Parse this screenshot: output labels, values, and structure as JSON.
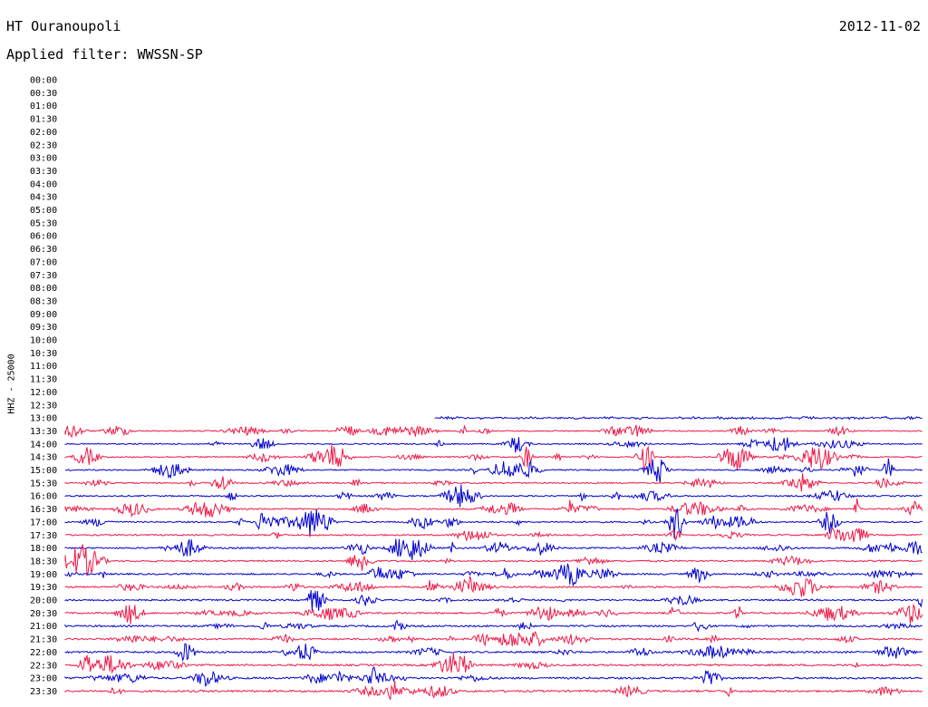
{
  "header": {
    "station": "HT Ouranoupoli",
    "date": "2012-11-02",
    "filter": "Applied filter: WWSSN-SP"
  },
  "channel_label": "HHZ - 25000",
  "colors": {
    "blue": "#0000cc",
    "red": "#ee1a48"
  },
  "chart_data": {
    "type": "line",
    "title": "HT Ouranoupoli",
    "ylabel": "HHZ - 25000",
    "y_tick_labels": [
      "00:00",
      "00:30",
      "01:00",
      "01:30",
      "02:00",
      "02:30",
      "03:00",
      "03:30",
      "04:00",
      "04:30",
      "05:00",
      "05:30",
      "06:00",
      "06:30",
      "07:00",
      "07:30",
      "08:00",
      "08:30",
      "09:00",
      "09:30",
      "10:00",
      "10:30",
      "11:00",
      "11:30",
      "12:00",
      "12:30",
      "13:00",
      "13:30",
      "14:00",
      "14:30",
      "15:00",
      "15:30",
      "16:00",
      "16:30",
      "17:00",
      "17:30",
      "18:00",
      "18:30",
      "19:00",
      "19:30",
      "20:00",
      "20:30",
      "21:00",
      "21:30",
      "22:00",
      "22:30",
      "23:00",
      "23:30"
    ],
    "data_start": "13:00",
    "series_colors": [
      "blue",
      "red"
    ],
    "grid": false,
    "legend": "none"
  }
}
